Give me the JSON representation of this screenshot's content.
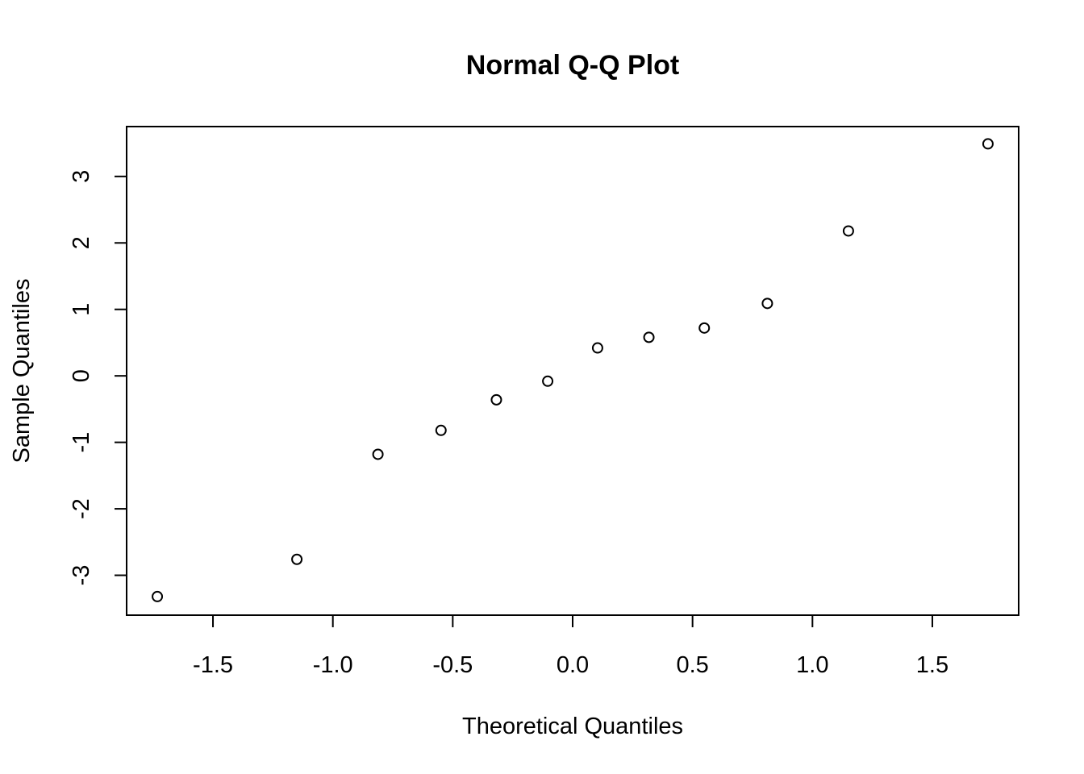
{
  "chart_data": {
    "type": "scatter",
    "title": "Normal Q-Q Plot",
    "xlabel": "Theoretical Quantiles",
    "ylabel": "Sample Quantiles",
    "xlim": [
      -1.86,
      1.86
    ],
    "ylim": [
      -3.6,
      3.75
    ],
    "xticks": [
      -1.5,
      -1.0,
      -0.5,
      0.0,
      0.5,
      1.0,
      1.5
    ],
    "xtick_labels": [
      "-1.5",
      "-1.0",
      "-0.5",
      "0.0",
      "0.5",
      "1.0",
      "1.5"
    ],
    "yticks": [
      -3,
      -2,
      -1,
      0,
      1,
      2,
      3
    ],
    "ytick_labels": [
      "-3",
      "-2",
      "-1",
      "0",
      "1",
      "2",
      "3"
    ],
    "grid": false,
    "marker": "open-circle",
    "color": "#000000",
    "x": [
      -1.732,
      -1.15,
      -0.812,
      -0.549,
      -0.318,
      -0.104,
      0.104,
      0.318,
      0.549,
      0.812,
      1.15,
      1.732
    ],
    "y": [
      -3.32,
      -2.76,
      -1.18,
      -0.82,
      -0.36,
      -0.08,
      0.42,
      0.58,
      0.72,
      1.09,
      2.18,
      3.49
    ]
  }
}
